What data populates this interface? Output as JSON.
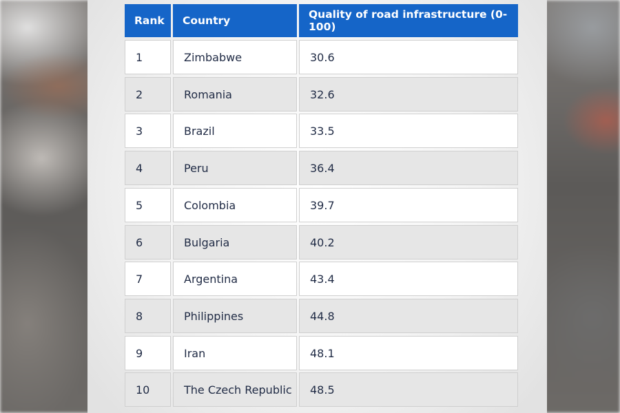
{
  "table": {
    "headers": {
      "rank": "Rank",
      "country": "Country",
      "quality": "Quality of road infrastructure (0-100)"
    },
    "rows": [
      {
        "rank": "1",
        "country": "Zimbabwe",
        "quality": "30.6"
      },
      {
        "rank": "2",
        "country": "Romania",
        "quality": "32.6"
      },
      {
        "rank": "3",
        "country": "Brazil",
        "quality": "33.5"
      },
      {
        "rank": "4",
        "country": "Peru",
        "quality": "36.4"
      },
      {
        "rank": "5",
        "country": "Colombia",
        "quality": "39.7"
      },
      {
        "rank": "6",
        "country": "Bulgaria",
        "quality": "40.2"
      },
      {
        "rank": "7",
        "country": "Argentina",
        "quality": "43.4"
      },
      {
        "rank": "8",
        "country": "Philippines",
        "quality": "44.8"
      },
      {
        "rank": "9",
        "country": "Iran",
        "quality": "48.1"
      },
      {
        "rank": "10",
        "country": "The Czech Republic",
        "quality": "48.5"
      }
    ]
  },
  "colors": {
    "header_bg": "#1565c8",
    "header_text": "#ffffff",
    "row_odd_bg": "#ffffff",
    "row_even_bg": "#e6e6e6",
    "cell_text": "#1f2a44"
  }
}
